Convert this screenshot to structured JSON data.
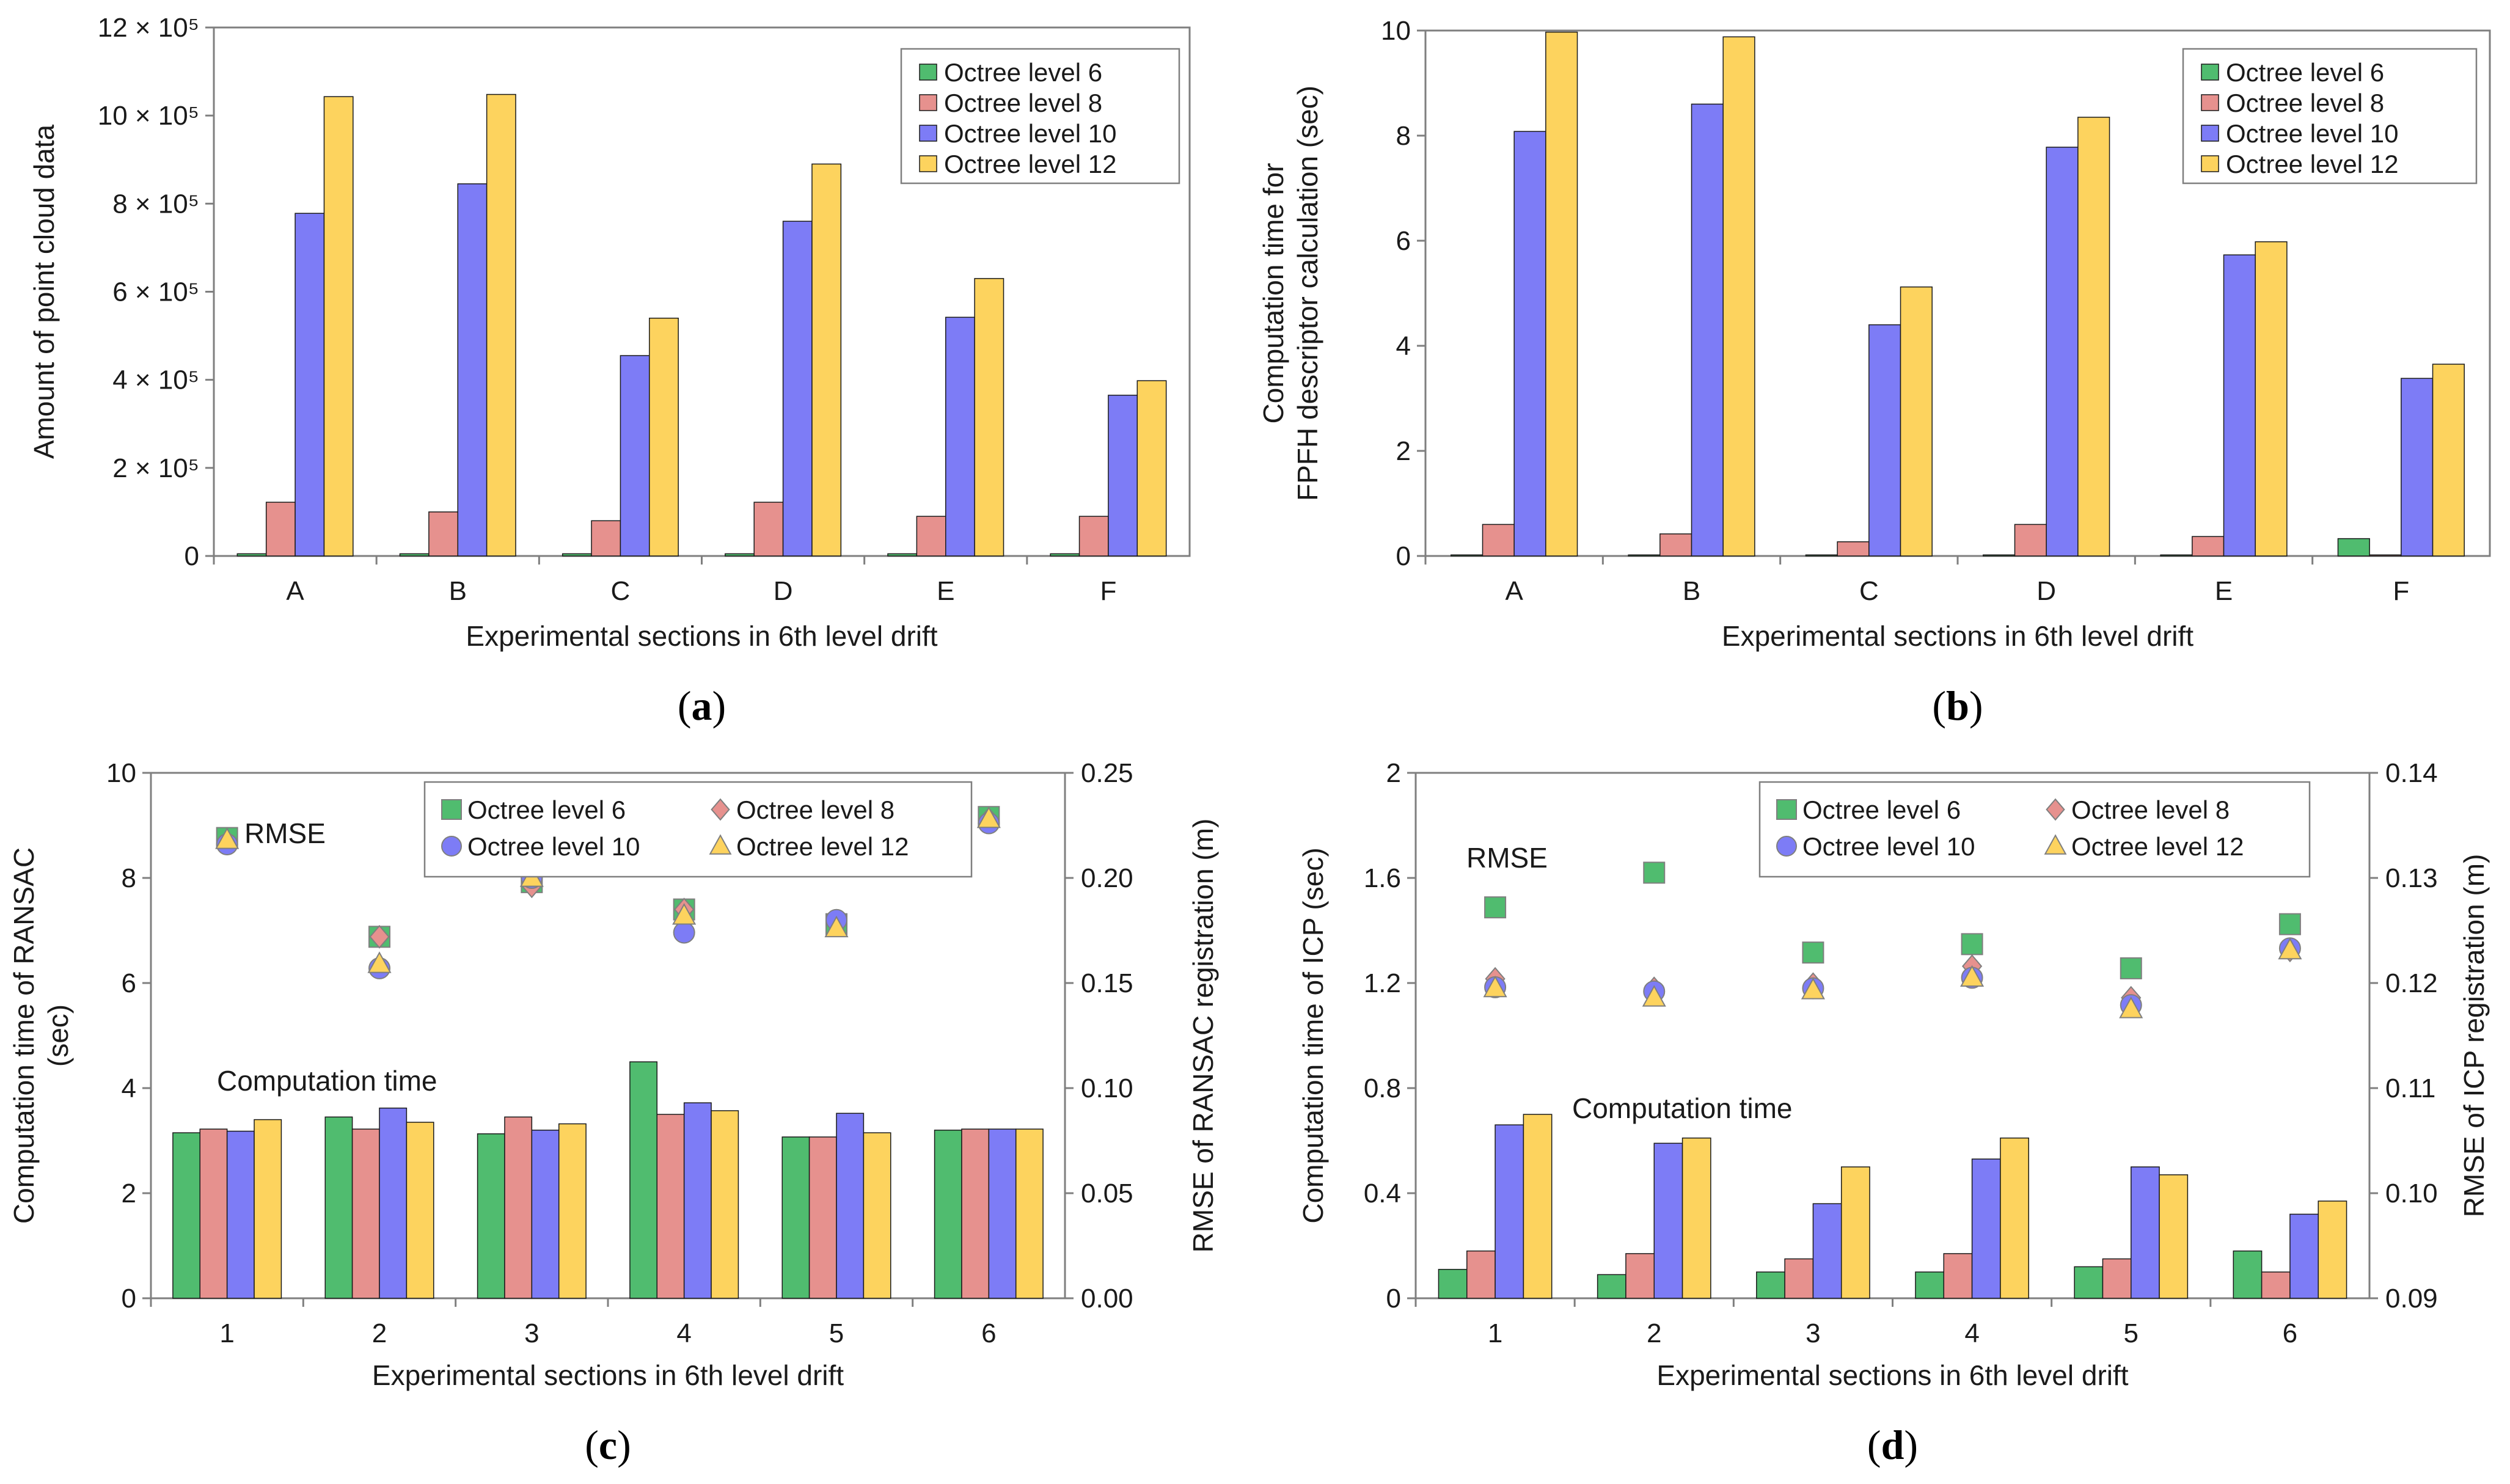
{
  "colors": {
    "level6": "#50BC6F",
    "level8": "#E6918E",
    "level10": "#7D7CF6",
    "level12": "#FDD35E",
    "axis": "#7f7f7f",
    "bar_edge": "#1a1a1a"
  },
  "chart_data": [
    {
      "type": "bar",
      "panel_label": "a",
      "title": "",
      "xlabel": "Experimental sections in 6th level drift",
      "ylabel": "Amount of point cloud data",
      "categories": [
        "A",
        "B",
        "C",
        "D",
        "E",
        "F"
      ],
      "ylim": [
        0,
        1200000
      ],
      "yticks": [
        0,
        200000,
        400000,
        600000,
        800000,
        1000000,
        1200000
      ],
      "ytick_labels": [
        "0",
        "2 × 10⁵",
        "4 × 10⁵",
        "6 × 10⁵",
        "8 × 10⁵",
        "10 × 10⁵",
        "12 × 10⁵"
      ],
      "legend_position": "top-right",
      "series": [
        {
          "name": "Octree level 6",
          "values": [
            5000,
            5000,
            5000,
            5000,
            5000,
            5000
          ]
        },
        {
          "name": "Octree level 8",
          "values": [
            122000,
            100000,
            80000,
            122000,
            90000,
            90000
          ]
        },
        {
          "name": "Octree level 10",
          "values": [
            778000,
            845000,
            455000,
            760000,
            542000,
            365000
          ]
        },
        {
          "name": "Octree level 12",
          "values": [
            1043000,
            1048000,
            540000,
            890000,
            630000,
            398000
          ]
        }
      ]
    },
    {
      "type": "bar",
      "panel_label": "b",
      "title": "",
      "xlabel": "Experimental sections in 6th level drift",
      "ylabel": [
        "Computation time for",
        "FPFH descriptor calculation (sec)"
      ],
      "categories": [
        "A",
        "B",
        "C",
        "D",
        "E",
        "F"
      ],
      "ylim": [
        0,
        10
      ],
      "yticks": [
        0,
        2,
        4,
        6,
        8,
        10
      ],
      "ytick_labels": [
        "0",
        "2",
        "4",
        "6",
        "8",
        "10"
      ],
      "legend_position": "top-right",
      "series": [
        {
          "name": "Octree level 6",
          "values": [
            0.02,
            0.02,
            0.02,
            0.02,
            0.02,
            0.33
          ]
        },
        {
          "name": "Octree level 8",
          "values": [
            0.6,
            0.42,
            0.27,
            0.6,
            0.37,
            0.02
          ]
        },
        {
          "name": "Octree level 10",
          "values": [
            8.08,
            8.6,
            4.4,
            7.78,
            5.73,
            3.38
          ]
        },
        {
          "name": "Octree level 12",
          "values": [
            9.97,
            9.88,
            5.12,
            8.35,
            5.98,
            3.65
          ]
        }
      ]
    },
    {
      "type": "bar",
      "panel_label": "c",
      "title": "",
      "xlabel": "Experimental sections in 6th level drift",
      "ylabel": [
        "Computation time of RANSAC",
        "(sec)"
      ],
      "y2label": "RMSE of RANSAC registration (m)",
      "categories": [
        "1",
        "2",
        "3",
        "4",
        "5",
        "6"
      ],
      "ylim": [
        0,
        10
      ],
      "yticks": [
        0,
        2,
        4,
        6,
        8,
        10
      ],
      "ytick_labels": [
        "0",
        "2",
        "4",
        "6",
        "8",
        "10"
      ],
      "y2lim": [
        0,
        0.25
      ],
      "y2ticks": [
        0,
        0.05,
        0.1,
        0.15,
        0.2,
        0.25
      ],
      "y2tick_labels": [
        "0.00",
        "0.05",
        "0.10",
        "0.15",
        "0.20",
        "0.25"
      ],
      "legend_position": "top-right",
      "annotations": [
        {
          "text": "RMSE",
          "near": "category 1, upper"
        },
        {
          "text": "Computation time",
          "near": "category 1, above bars"
        }
      ],
      "series": [
        {
          "name": "Octree level 6",
          "values": [
            3.15,
            3.45,
            3.13,
            4.5,
            3.07,
            3.2
          ]
        },
        {
          "name": "Octree level 8",
          "values": [
            3.22,
            3.22,
            3.45,
            3.5,
            3.07,
            3.22
          ]
        },
        {
          "name": "Octree level 10",
          "values": [
            3.18,
            3.62,
            3.2,
            3.72,
            3.52,
            3.22
          ]
        },
        {
          "name": "Octree level 12",
          "values": [
            3.4,
            3.35,
            3.32,
            3.57,
            3.15,
            3.22
          ]
        }
      ],
      "rmse_series": [
        {
          "name": "Octree level 6",
          "values": [
            0.219,
            0.172,
            0.198,
            0.185,
            0.178,
            0.229
          ]
        },
        {
          "name": "Octree level 8",
          "values": [
            0.217,
            0.172,
            0.196,
            0.185,
            0.178,
            0.228
          ]
        },
        {
          "name": "Octree level 10",
          "values": [
            0.216,
            0.157,
            0.2,
            0.174,
            0.18,
            0.226
          ]
        },
        {
          "name": "Octree level 12",
          "values": [
            0.218,
            0.159,
            0.2,
            0.182,
            0.176,
            0.228
          ]
        }
      ]
    },
    {
      "type": "bar",
      "panel_label": "d",
      "title": "",
      "xlabel": "Experimental sections in 6th level drift",
      "ylabel": "Computation time of ICP (sec)",
      "y2label": "RMSE of ICP registration (m)",
      "categories": [
        "1",
        "2",
        "3",
        "4",
        "5",
        "6"
      ],
      "ylim": [
        0,
        2
      ],
      "yticks": [
        0,
        0.4,
        0.8,
        1.2,
        1.6,
        2
      ],
      "ytick_labels": [
        "0",
        "0.4",
        "0.8",
        "1.2",
        "1.6",
        "2"
      ],
      "y2lim": [
        0.09,
        0.14
      ],
      "y2ticks": [
        0.09,
        0.1,
        0.11,
        0.12,
        0.13,
        0.14
      ],
      "y2tick_labels": [
        "0.09",
        "0.10",
        "0.11",
        "0.12",
        "0.13",
        "0.14"
      ],
      "legend_position": "top-right",
      "annotations": [
        {
          "text": "RMSE",
          "near": "category 1, upper"
        },
        {
          "text": "Computation time",
          "near": "categories 1-2, above bars"
        }
      ],
      "series": [
        {
          "name": "Octree level 6",
          "values": [
            0.11,
            0.09,
            0.1,
            0.1,
            0.12,
            0.18
          ]
        },
        {
          "name": "Octree level 8",
          "values": [
            0.18,
            0.17,
            0.15,
            0.17,
            0.15,
            0.1
          ]
        },
        {
          "name": "Octree level 10",
          "values": [
            0.66,
            0.59,
            0.36,
            0.53,
            0.5,
            0.32
          ]
        },
        {
          "name": "Octree level 12",
          "values": [
            0.7,
            0.61,
            0.5,
            0.61,
            0.47,
            0.37
          ]
        }
      ],
      "rmse_series": [
        {
          "name": "Octree level 6",
          "values": [
            0.1272,
            0.1305,
            0.1229,
            0.1237,
            0.1214,
            0.1256
          ]
        },
        {
          "name": "Octree level 8",
          "values": [
            0.1204,
            0.1195,
            0.1199,
            0.1216,
            0.1186,
            0.1231
          ]
        },
        {
          "name": "Octree level 10",
          "values": [
            0.1196,
            0.1192,
            0.1195,
            0.1205,
            0.1179,
            0.1233
          ]
        },
        {
          "name": "Octree level 12",
          "values": [
            0.1195,
            0.1186,
            0.1193,
            0.1205,
            0.1175,
            0.1231
          ]
        }
      ]
    }
  ]
}
